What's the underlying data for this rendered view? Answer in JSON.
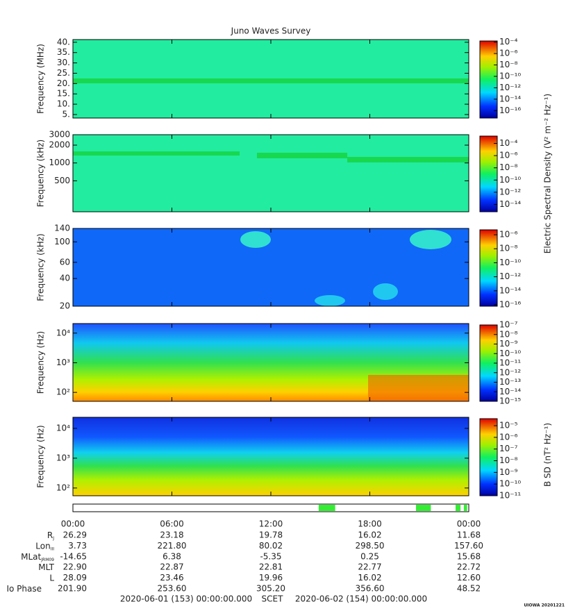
{
  "chart_data": {
    "type": "spectrogram",
    "title": "Juno Waves Survey",
    "xlim": [
      0,
      24
    ],
    "xticks": [
      {
        "value": 0,
        "label": "00:00"
      },
      {
        "value": 6,
        "label": "06:00"
      },
      {
        "value": 12,
        "label": "12:00"
      },
      {
        "value": 18,
        "label": "18:00"
      },
      {
        "value": 24,
        "label": "00:00"
      }
    ],
    "panels": [
      {
        "ylabel": "Frequency (MHz)",
        "log": false,
        "ylim": [
          3.3,
          41.3
        ],
        "yticks": [
          {
            "value": 5,
            "label": "5."
          },
          {
            "value": 10,
            "label": "10."
          },
          {
            "value": 15,
            "label": "15."
          },
          {
            "value": 20,
            "label": "20."
          },
          {
            "value": 25,
            "label": "25."
          },
          {
            "value": 30,
            "label": "30."
          },
          {
            "value": 35,
            "label": "35."
          },
          {
            "value": 40,
            "label": "40."
          }
        ],
        "colorbar": {
          "log": true,
          "lim": [
            -17.3,
            -3.8
          ],
          "ticks": [
            {
              "value": -4,
              "label": "10⁻⁴"
            },
            {
              "value": -6,
              "label": "10⁻⁶"
            },
            {
              "value": -8,
              "label": "10⁻⁸"
            },
            {
              "value": -10,
              "label": "10⁻¹⁰"
            },
            {
              "value": -12,
              "label": "10⁻¹²"
            },
            {
              "value": -14,
              "label": "10⁻¹⁴"
            },
            {
              "value": -16,
              "label": "10⁻¹⁶"
            }
          ]
        }
      },
      {
        "ylabel": "Frequency (kHz)",
        "log": true,
        "ylim": [
          150,
          3000
        ],
        "yticks": [
          500,
          1000,
          2000,
          3000
        ],
        "colorbar": {
          "log": true,
          "lim": [
            -15.2,
            -2.8
          ],
          "ticks": [
            {
              "value": -4,
              "label": "10⁻⁴"
            },
            {
              "value": -6,
              "label": "10⁻⁶"
            },
            {
              "value": -8,
              "label": "10⁻⁸"
            },
            {
              "value": -10,
              "label": "10⁻¹⁰"
            },
            {
              "value": -12,
              "label": "10⁻¹²"
            },
            {
              "value": -14,
              "label": "10⁻¹⁴"
            }
          ]
        }
      },
      {
        "ylabel": "Frequency (kHz)",
        "log": true,
        "ylim": [
          20,
          140
        ],
        "yticks": [
          20,
          40,
          60,
          100,
          140
        ],
        "colorbar": {
          "log": true,
          "lim": [
            -16.2,
            -5.3
          ],
          "ticks": [
            {
              "value": -6,
              "label": "10⁻⁶"
            },
            {
              "value": -8,
              "label": "10⁻⁸"
            },
            {
              "value": -10,
              "label": "10⁻¹⁰"
            },
            {
              "value": -12,
              "label": "10⁻¹²"
            },
            {
              "value": -14,
              "label": "10⁻¹⁴"
            },
            {
              "value": -16,
              "label": "10⁻¹⁶"
            }
          ]
        }
      },
      {
        "ylabel": "Frequency (Hz)",
        "log": true,
        "ylim": [
          50,
          21000
        ],
        "yticks": [
          {
            "value": 100,
            "label": "10²"
          },
          {
            "value": 1000,
            "label": "10³"
          },
          {
            "value": 10000,
            "label": "10⁴"
          }
        ],
        "colorbar": {
          "log": true,
          "lim": [
            -15,
            -7
          ],
          "ticks": [
            {
              "value": -7,
              "label": "10⁻⁷"
            },
            {
              "value": -8,
              "label": "10⁻⁸"
            },
            {
              "value": -9,
              "label": "10⁻⁹"
            },
            {
              "value": -10,
              "label": "10⁻¹⁰"
            },
            {
              "value": -11,
              "label": "10⁻¹¹"
            },
            {
              "value": -12,
              "label": "10⁻¹²"
            },
            {
              "value": -13,
              "label": "10⁻¹³"
            },
            {
              "value": -14,
              "label": "10⁻¹⁴"
            },
            {
              "value": -15,
              "label": "10⁻¹⁵"
            }
          ]
        }
      },
      {
        "ylabel": "Frequency (Hz)",
        "log": true,
        "ylim": [
          55,
          23500
        ],
        "yticks": [
          {
            "value": 100,
            "label": "10²"
          },
          {
            "value": 1000,
            "label": "10³"
          },
          {
            "value": 10000,
            "label": "10⁴"
          }
        ],
        "colorbar": {
          "log": true,
          "lim": [
            -11,
            -4.4
          ],
          "ticks": [
            {
              "value": -5,
              "label": "10⁻⁵"
            },
            {
              "value": -6,
              "label": "10⁻⁶"
            },
            {
              "value": -7,
              "label": "10⁻⁷"
            },
            {
              "value": -8,
              "label": "10⁻⁸"
            },
            {
              "value": -9,
              "label": "10⁻⁹"
            },
            {
              "value": -10,
              "label": "10⁻¹⁰"
            },
            {
              "value": -11,
              "label": "10⁻¹¹"
            }
          ]
        }
      }
    ],
    "colorbar_labels": [
      "Electric Spectral Density (V² m⁻² Hz⁻¹)",
      "B SD (nT² Hz⁻¹)"
    ],
    "coverage": {
      "color": "#33ee33",
      "segments": [
        [
          14.9,
          15.9
        ],
        [
          20.8,
          21.7
        ],
        [
          23.2,
          23.5
        ],
        [
          23.7,
          23.9
        ]
      ]
    },
    "ephemeris": {
      "rows": [
        {
          "name": "R",
          "sub": "J",
          "values": [
            "26.29",
            "23.18",
            "19.78",
            "16.02",
            "11.68"
          ]
        },
        {
          "name": "Lon",
          "sub": "III",
          "values": [
            "3.73",
            "221.80",
            "80.02",
            "298.50",
            "157.60"
          ]
        },
        {
          "name": "MLat",
          "sub": "JRM09",
          "values": [
            "-14.65",
            "6.38",
            "-5.35",
            "0.25",
            "15.68"
          ]
        },
        {
          "name": "MLT",
          "values": [
            "22.90",
            "22.87",
            "22.81",
            "22.77",
            "22.72"
          ]
        },
        {
          "name": "L",
          "values": [
            "28.09",
            "23.46",
            "19.96",
            "16.02",
            "12.60"
          ]
        },
        {
          "name": "Io Phase",
          "values": [
            "201.90",
            "253.60",
            "305.20",
            "356.60",
            "48.52"
          ]
        }
      ]
    },
    "footer": {
      "start": "2020-06-01 (153) 00:00:00.000",
      "scet": "SCET",
      "end": "2020-06-02 (154) 00:00:00.000"
    },
    "credit": "UIOWA 20201221"
  }
}
